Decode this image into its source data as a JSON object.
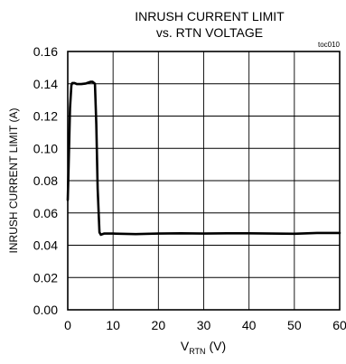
{
  "chart_data": {
    "type": "line",
    "title_line1": "INRUSH CURRENT LIMIT",
    "title_line2": "vs. RTN VOLTAGE",
    "tag": "toc010",
    "xlabel_main": "V",
    "xlabel_sub": "RTN",
    "xlabel_unit": " (V)",
    "ylabel": "INRUSH CURRENT LIMIT (A)",
    "xlim": [
      0,
      60
    ],
    "ylim": [
      0,
      0.16
    ],
    "grid": true,
    "xticks": [
      0,
      10,
      20,
      30,
      40,
      50,
      60
    ],
    "xtick_labels": [
      "0",
      "10",
      "20",
      "30",
      "40",
      "50",
      "60"
    ],
    "yticks": [
      0,
      0.02,
      0.04,
      0.06,
      0.08,
      0.1,
      0.12,
      0.14,
      0.16
    ],
    "ytick_labels": [
      "0.00",
      "0.02",
      "0.04",
      "0.06",
      "0.08",
      "0.10",
      "0.12",
      "0.14",
      "0.16"
    ],
    "series": [
      {
        "color": "#000000",
        "x": [
          0.0,
          0.2,
          0.5,
          0.8,
          1.0,
          1.5,
          2.0,
          3.0,
          4.0,
          5.0,
          5.5,
          6.0,
          6.3,
          6.6,
          7.0,
          7.3,
          8.0,
          10.0,
          15.0,
          20.0,
          25.0,
          30.0,
          35.0,
          40.0,
          45.0,
          50.0,
          55.0,
          60.0
        ],
        "y": [
          0.068,
          0.09,
          0.125,
          0.139,
          0.1405,
          0.1405,
          0.1398,
          0.1398,
          0.1402,
          0.1412,
          0.1412,
          0.14,
          0.115,
          0.075,
          0.048,
          0.0465,
          0.0472,
          0.0472,
          0.0469,
          0.0472,
          0.0474,
          0.0472,
          0.0474,
          0.0474,
          0.0472,
          0.0471,
          0.0476,
          0.0476
        ]
      }
    ]
  }
}
